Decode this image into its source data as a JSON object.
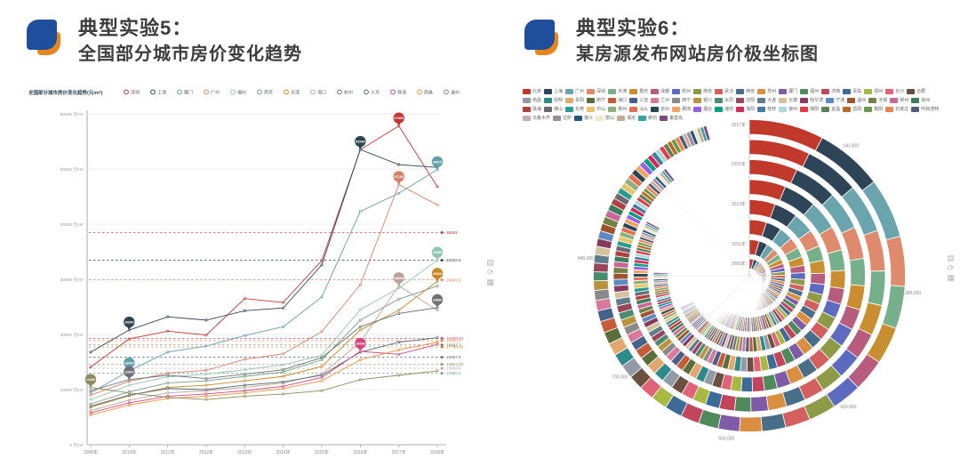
{
  "left_panel": {
    "title": "典型实验5：",
    "subtitle": "全国部分城市房价变化趋势"
  },
  "right_panel": {
    "title": "典型实验6：",
    "subtitle": "某房源发布网站房价极坐标图"
  },
  "brand": {
    "blue": "#1f4e9c",
    "orange": "#e8861d"
  },
  "toolbox": {
    "icons": [
      {
        "name": "save-image-icon",
        "glyph": "▤"
      },
      {
        "name": "restore-icon",
        "glyph": "⟳"
      },
      {
        "name": "data-view-icon",
        "glyph": "▦"
      }
    ]
  },
  "chart_data": [
    {
      "type": "line",
      "title": "全国部分城市房价变化趋势(元/m²)",
      "x": [
        "2009年",
        "2010年",
        "2011年",
        "2012年",
        "2013年",
        "2014年",
        "2015年",
        "2016年",
        "2017年",
        "2018年"
      ],
      "ylabel": "元/m²",
      "ylim": [
        0,
        60000
      ],
      "y_ticks": [
        0,
        10000,
        20000,
        30000,
        40000,
        50000,
        60000
      ],
      "grid": true,
      "legend_position": "top",
      "series": [
        {
          "name": "深圳",
          "color": "#c23531",
          "values": [
            14100,
            19200,
            20600,
            19900,
            26500,
            25800,
            33400,
            53500,
            57800,
            46800
          ]
        },
        {
          "name": "上海",
          "color": "#2f4554",
          "values": [
            16800,
            20800,
            23200,
            22600,
            24300,
            24800,
            32600,
            53540,
            50800,
            50300
          ]
        },
        {
          "name": "厦门",
          "color": "#61a0a8",
          "values": [
            9400,
            13400,
            16800,
            17900,
            19800,
            21400,
            26800,
            42300,
            45600,
            49875
          ]
        },
        {
          "name": "广州",
          "color": "#d48265",
          "values": [
            9000,
            11500,
            13000,
            13500,
            15500,
            16500,
            20500,
            29000,
            47182,
            43500
          ]
        },
        {
          "name": "福州",
          "color": "#91c7ae",
          "values": [
            8200,
            10800,
            12300,
            12800,
            13600,
            14500,
            16200,
            24500,
            28400,
            33450
          ]
        },
        {
          "name": "南京",
          "color": "#749f83",
          "values": [
            7400,
            9600,
            11200,
            11600,
            12400,
            13200,
            15400,
            22600,
            26400,
            28800
          ]
        },
        {
          "name": "天津",
          "color": "#ca8622",
          "values": [
            6800,
            8900,
            10400,
            10800,
            11600,
            12400,
            14200,
            20800,
            24400,
            29620
          ]
        },
        {
          "name": "海口",
          "color": "#bda29a",
          "values": [
            6200,
            8100,
            9400,
            9800,
            10400,
            11200,
            12800,
            18600,
            28820,
            24400
          ]
        },
        {
          "name": "杭州",
          "color": "#6e7074",
          "values": [
            9800,
            11800,
            12600,
            12000,
            12800,
            13600,
            15800,
            21400,
            23800,
            24860
          ]
        },
        {
          "name": "义乌",
          "color": "#546570",
          "values": [
            7000,
            9000,
            10200,
            10000,
            10800,
            11400,
            12600,
            16800,
            18600,
            19400
          ]
        },
        {
          "name": "珠海",
          "color": "#d1477e",
          "values": [
            5800,
            7600,
            8800,
            9200,
            9800,
            10600,
            12200,
            16936,
            16400,
            18200
          ]
        },
        {
          "name": "南昌",
          "color": "#e98f36",
          "values": [
            5400,
            7200,
            8400,
            8800,
            9400,
            10200,
            11600,
            15400,
            17200,
            18600
          ]
        },
        {
          "name": "温州",
          "color": "#8a8a5c",
          "values": [
            10400,
            9400,
            8600,
            8200,
            8800,
            9200,
            9800,
            11800,
            12600,
            13400
          ]
        }
      ],
      "pins": [
        {
          "series": 0,
          "xi": 8,
          "value": 57800
        },
        {
          "series": 1,
          "xi": 7,
          "value": 53540
        },
        {
          "series": 2,
          "xi": 9,
          "value": 49875
        },
        {
          "series": 3,
          "xi": 8,
          "value": 47182
        },
        {
          "series": 4,
          "xi": 9,
          "value": 33450
        },
        {
          "series": 6,
          "xi": 9,
          "value": 29620
        },
        {
          "series": 7,
          "xi": 8,
          "value": 28820
        },
        {
          "series": 8,
          "xi": 9,
          "value": 24860
        },
        {
          "series": 10,
          "xi": 7,
          "value": 16936
        },
        {
          "series": 1,
          "xi": 1,
          "value": 20800
        },
        {
          "series": 2,
          "xi": 1,
          "value": 13400
        },
        {
          "series": 8,
          "xi": 1,
          "value": 11800
        },
        {
          "series": 12,
          "xi": 0,
          "value": 10400
        }
      ],
      "mark_lines": [
        {
          "series": 0,
          "value": 38481.0
        },
        {
          "series": 1,
          "value": 33462.5
        },
        {
          "series": 3,
          "value": 29889.9
        },
        {
          "series": 10,
          "value": 19300.33
        },
        {
          "series": 11,
          "value": 18868.9
        },
        {
          "series": 8,
          "value": 18093.7
        },
        {
          "series": 6,
          "value": 17730.36
        },
        {
          "series": 9,
          "value": 15867.5
        },
        {
          "series": 12,
          "value": 14603.25
        },
        {
          "series": 7,
          "value": 13864.5
        },
        {
          "series": 5,
          "value": 12960.4
        }
      ]
    },
    {
      "type": "polar_stacked_bar",
      "title": "某房源发布网站房价极坐标图",
      "angular_unit": "元",
      "angular_labels": [
        {
          "angle": 38,
          "text": "140,000"
        },
        {
          "angle": 96,
          "text": "280,000"
        },
        {
          "angle": 143,
          "text": "420,000"
        },
        {
          "angle": 188,
          "text": "560,000"
        },
        {
          "angle": 232,
          "text": "700,000"
        },
        {
          "angle": 276,
          "text": "840,000"
        }
      ],
      "year_labels": [
        {
          "text": "2009年",
          "r": 12
        },
        {
          "text": "2011年",
          "r": 34
        },
        {
          "text": "2013年",
          "r": 79
        },
        {
          "text": "2015年",
          "r": 124
        },
        {
          "text": "2017年",
          "r": 168
        }
      ],
      "rings": [
        {
          "span": 185
        },
        {
          "span": 195
        },
        {
          "span": 220
        },
        {
          "span": 245
        },
        {
          "span": 272
        },
        {
          "span": 298
        },
        {
          "span": 322
        },
        {
          "span": 344
        }
      ],
      "base_weights": [
        30,
        27,
        24,
        20,
        17,
        15,
        13,
        12,
        11,
        10,
        9.5,
        9,
        8.5,
        8,
        7.5,
        7,
        6.5,
        6,
        5.8,
        5.5,
        5.2,
        5,
        4.8,
        4.6,
        4.4,
        4.2,
        4,
        3.8,
        3.6,
        3.5,
        3.4,
        3.3,
        3.2,
        3.1,
        3,
        2.9,
        2.8,
        2.7,
        2.6,
        2.5,
        2.45,
        2.4,
        2.35,
        2.3,
        2.25,
        2.2,
        2.15,
        2.1,
        2.05,
        2,
        1.95,
        1.9,
        1.85,
        1.8,
        1.75,
        1.7,
        1.65,
        1.6,
        1.55,
        1.5,
        1.45,
        1.4,
        1.35,
        1.3
      ],
      "cities": [
        "北京",
        "上海",
        "广州",
        "深圳",
        "天津",
        "重庆",
        "成都",
        "杭州",
        "南京",
        "武汉",
        "西安",
        "苏州",
        "厦门",
        "福州",
        "济南",
        "青岛",
        "郑州",
        "长沙",
        "合肥",
        "南昌",
        "昆明",
        "贵阳",
        "南宁",
        "海口",
        "三亚",
        "兰州",
        "西宁",
        "银川",
        "太原",
        "沈阳",
        "大连",
        "长春",
        "哈尔滨",
        "宁波",
        "温州",
        "无锡",
        "常州",
        "徐州",
        "珠海",
        "佛山",
        "东莞",
        "中山",
        "惠州",
        "汕头",
        "泉州",
        "莆田",
        "烟台",
        "潍坊",
        "洛阳",
        "桂林",
        "柳州",
        "绵阳",
        "宜昌",
        "岳阳",
        "衡阳",
        "石家庄",
        "呼和浩特",
        "乌鲁木齐",
        "拉萨",
        "遵义",
        "唐山",
        "保定",
        "廊坊",
        "秦皇岛"
      ],
      "colors": [
        "#c0392b",
        "#2e4557",
        "#6aa5ad",
        "#e08a6d",
        "#76b08a",
        "#c98e2f",
        "#b85c7d",
        "#5c6bc0",
        "#8d9a46",
        "#d45f5f",
        "#486f87",
        "#d98f3f",
        "#7d5ba6",
        "#4f8a5b",
        "#c2455c",
        "#3d6b99",
        "#a8b840",
        "#e06377",
        "#6b4f3f",
        "#939aa5",
        "#2d8a8a",
        "#e2a86f",
        "#5a6e3a",
        "#c75b39",
        "#46618a",
        "#d8789a",
        "#8a8a8a",
        "#b8923d",
        "#4a8a6f",
        "#99455c",
        "#607d8b",
        "#d4c29a",
        "#863a5c",
        "#5b8ac2",
        "#a0522d",
        "#708246",
        "#cc6699",
        "#3a7c5c",
        "#b0413e",
        "#6d6875",
        "#2a9d8f",
        "#e9c46a",
        "#8ab17d",
        "#e76f51",
        "#264653",
        "#f4a261",
        "#9b5de5",
        "#00a087",
        "#d62850",
        "#457b9d",
        "#a8dadc",
        "#e63946",
        "#588157",
        "#bc6c25",
        "#6a994e",
        "#ef8354",
        "#4f5d75",
        "#c9ada7",
        "#9a8c98",
        "#22577a",
        "#f2e8cf",
        "#c6ac8f",
        "#38a3a5",
        "#80477e"
      ]
    }
  ]
}
